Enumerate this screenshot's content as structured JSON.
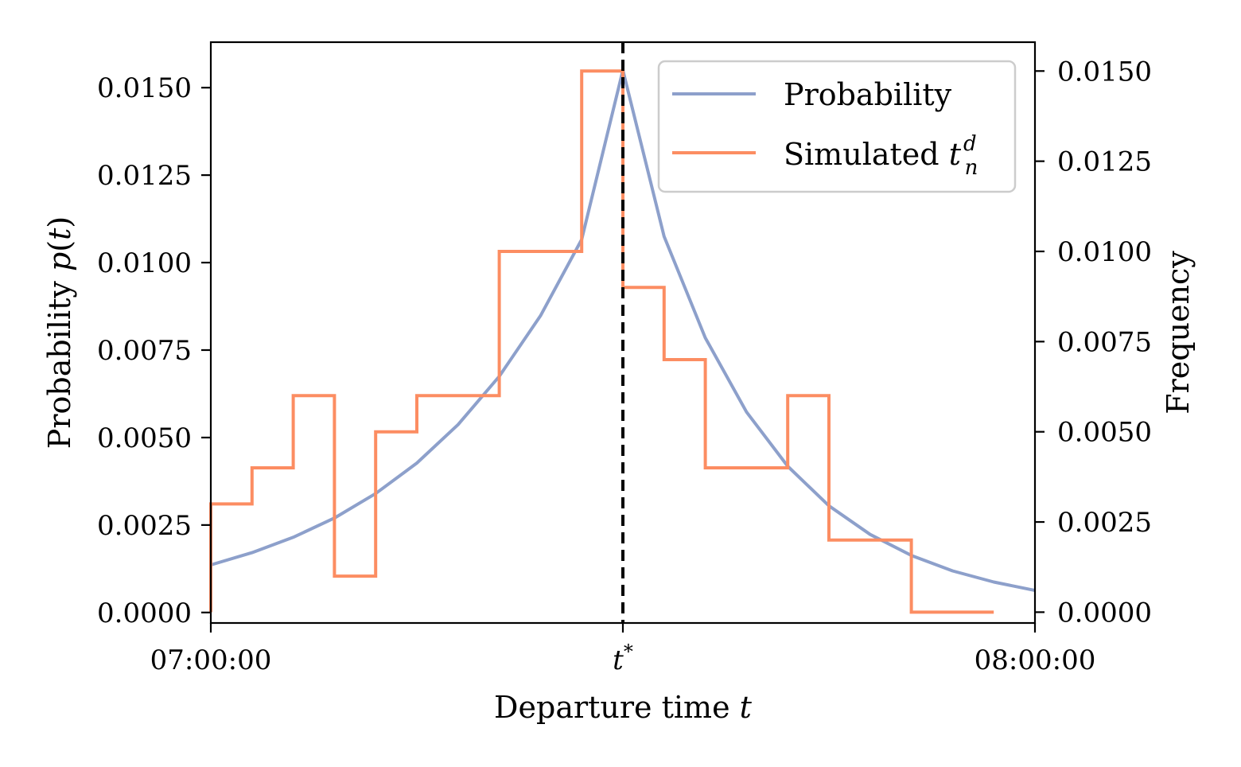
{
  "chart_data": {
    "type": "line",
    "xlabel": "Departure time t",
    "ylabel_left": "Probability p(t)",
    "ylabel_right": "Frequency",
    "x_tick_labels": [
      "07:00:00",
      "t*",
      "08:00:00"
    ],
    "x_ticks_minutes": [
      0,
      30,
      60
    ],
    "xlim_minutes": [
      0,
      60
    ],
    "ylim_left": [
      -0.0003,
      0.0163
    ],
    "ylim_right": [
      -0.0003,
      0.0158
    ],
    "y_ticks_left": [
      "0.0000",
      "0.0025",
      "0.0050",
      "0.0075",
      "0.0100",
      "0.0125",
      "0.0150"
    ],
    "y_ticks_right": [
      "0.0000",
      "0.0025",
      "0.0050",
      "0.0075",
      "0.0100",
      "0.0125",
      "0.0150"
    ],
    "t_star_minutes": 30,
    "legend_position": "top-right",
    "series": [
      {
        "name": "Probability",
        "color": "#8da0cb",
        "axis": "left",
        "x_minutes": [
          0,
          3,
          6,
          9,
          12,
          15,
          18,
          21,
          24,
          27,
          30,
          33,
          36,
          39,
          42,
          45,
          48,
          51,
          54,
          57,
          60
        ],
        "values": [
          0.00136,
          0.00171,
          0.00215,
          0.0027,
          0.0034,
          0.00427,
          0.00537,
          0.00675,
          0.00848,
          0.01066,
          0.0155,
          0.01075,
          0.00785,
          0.00573,
          0.00418,
          0.00305,
          0.00223,
          0.00163,
          0.00119,
          0.00087,
          0.00063
        ]
      },
      {
        "name": "Simulated t_n^d",
        "color": "#fc8d62",
        "axis": "right",
        "type": "step",
        "bin_edges_minutes": [
          0,
          3,
          6,
          9,
          12,
          15,
          18,
          21,
          24,
          27,
          30,
          33,
          36,
          39,
          42,
          45,
          48,
          51,
          54,
          57
        ],
        "values": [
          0.003,
          0.004,
          0.006,
          0.001,
          0.005,
          0.006,
          0.006,
          0.01,
          0.01,
          0.015,
          0.009,
          0.007,
          0.004,
          0.004,
          0.006,
          0.002,
          0.002,
          0.0,
          0.0
        ]
      }
    ]
  },
  "legend": {
    "items": [
      {
        "label": "Probability",
        "color": "#8da0cb"
      },
      {
        "label": "Simulated",
        "math_base": "t",
        "math_sup": "d",
        "math_sub": "n",
        "color": "#fc8d62"
      }
    ]
  }
}
